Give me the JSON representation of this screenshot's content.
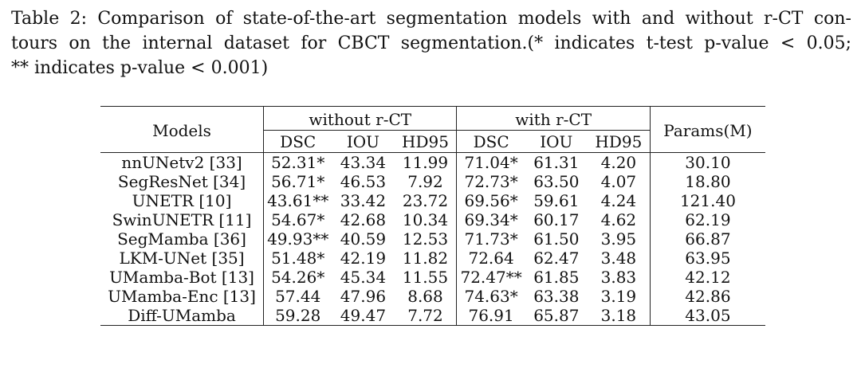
{
  "caption": {
    "lines": [
      "Table 2: Comparison of state-of-the-art segmentation models with and without r-CT con-",
      "tours on the internal dataset for CBCT segmentation.(* indicates t-test p-value < 0.05;",
      "** indicates p-value < 0.001)"
    ]
  },
  "table": {
    "header": {
      "models": "Models",
      "group_without": "without r-CT",
      "group_with": "with r-CT",
      "params": "Params(M)",
      "metrics": [
        "DSC",
        "IOU",
        "HD95",
        "DSC",
        "IOU",
        "HD95"
      ]
    },
    "rows": [
      {
        "model": "nnUNetv2 [33]",
        "cells": [
          "52.31*",
          "43.34",
          "11.99",
          "71.04*",
          "61.31",
          "4.20"
        ],
        "params": "30.10"
      },
      {
        "model": "SegResNet [34]",
        "cells": [
          "56.71*",
          "46.53",
          "7.92",
          "72.73*",
          "63.50",
          "4.07"
        ],
        "params": "18.80"
      },
      {
        "model": "UNETR [10]",
        "cells": [
          "43.61**",
          "33.42",
          "23.72",
          "69.56*",
          "59.61",
          "4.24"
        ],
        "params": "121.40"
      },
      {
        "model": "SwinUNETR [11]",
        "cells": [
          "54.67*",
          "42.68",
          "10.34",
          "69.34*",
          "60.17",
          "4.62"
        ],
        "params": "62.19"
      },
      {
        "model": "SegMamba [36]",
        "cells": [
          "49.93**",
          "40.59",
          "12.53",
          "71.73*",
          "61.50",
          "3.95"
        ],
        "params": "66.87"
      },
      {
        "model": "LKM-UNet [35]",
        "cells": [
          "51.48*",
          "42.19",
          "11.82",
          "72.64",
          "62.47",
          "3.48"
        ],
        "params": "63.95"
      },
      {
        "model": "UMamba-Bot [13]",
        "cells": [
          "54.26*",
          "45.34",
          "11.55",
          "72.47**",
          "61.85",
          "3.83"
        ],
        "params": "42.12"
      },
      {
        "model": "UMamba-Enc [13]",
        "cells": [
          "57.44",
          "47.96",
          "8.68",
          "74.63*",
          "63.38",
          "3.19"
        ],
        "params": "42.86"
      },
      {
        "model": "Diff-UMamba",
        "cells": [
          "59.28",
          "49.47",
          "7.72",
          "76.91",
          "65.87",
          "3.18"
        ],
        "params": "43.05",
        "bold_cells": true
      }
    ]
  }
}
